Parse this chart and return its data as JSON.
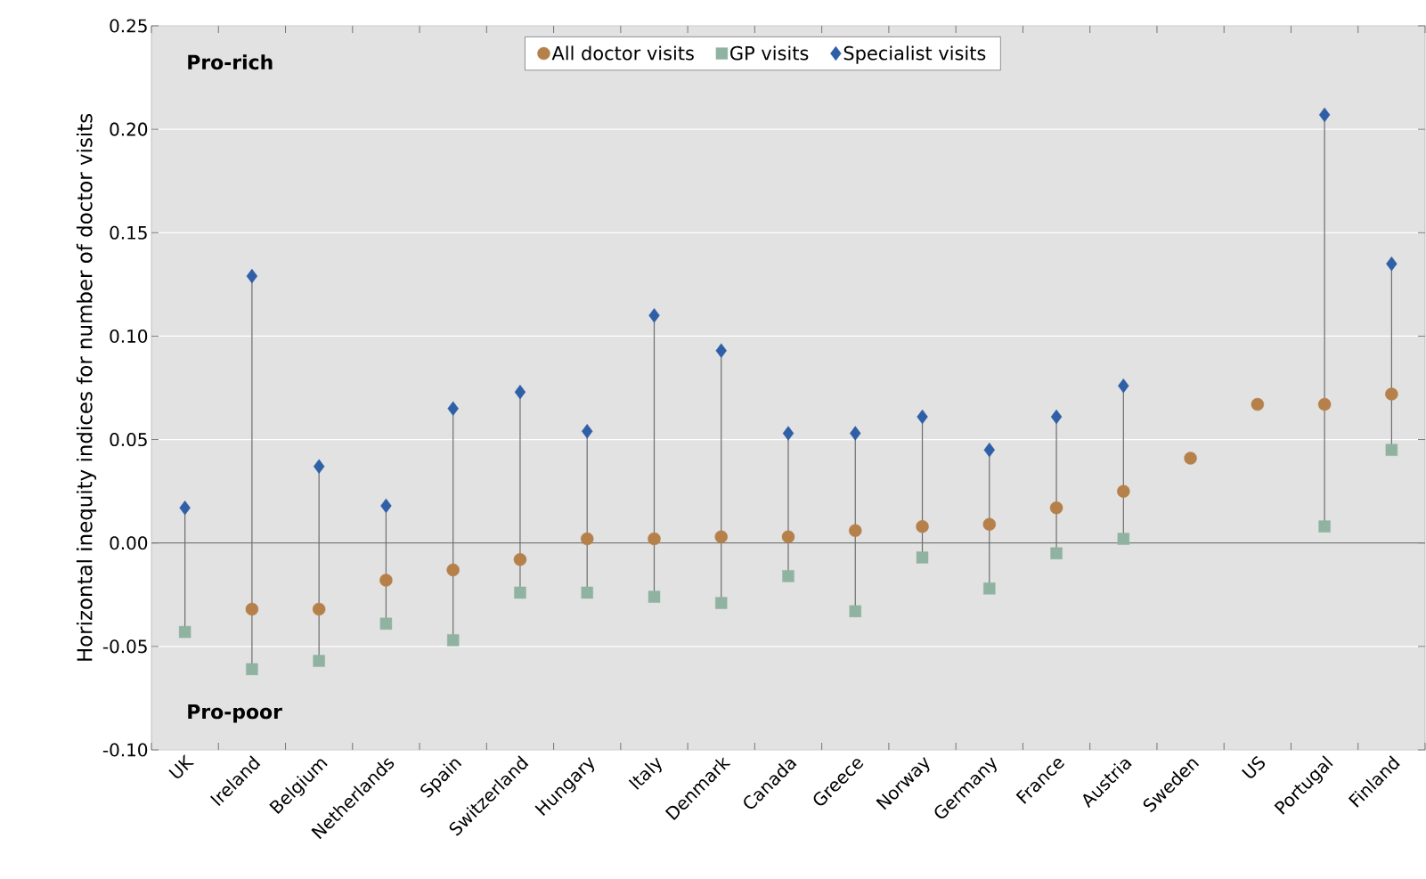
{
  "chart_data": {
    "type": "scatter",
    "ylabel": "Horizontal inequity indices for number of doctor visits",
    "categories": [
      "UK",
      "Ireland",
      "Belgium",
      "Netherlands",
      "Spain",
      "Switzerland",
      "Hungary",
      "Italy",
      "Denmark",
      "Canada",
      "Greece",
      "Norway",
      "Germany",
      "France",
      "Austria",
      "Sweden",
      "US",
      "Portugal",
      "Finland"
    ],
    "series": [
      {
        "name": "All doctor visits",
        "color": "#b5804a",
        "marker": "circle",
        "values": [
          null,
          -0.032,
          -0.032,
          -0.018,
          -0.013,
          -0.008,
          0.002,
          0.002,
          0.003,
          0.003,
          0.006,
          0.008,
          0.009,
          0.017,
          0.025,
          0.041,
          0.067,
          0.067,
          0.072
        ]
      },
      {
        "name": "GP visits",
        "color": "#8fb3a0",
        "marker": "square",
        "values": [
          -0.043,
          -0.061,
          -0.057,
          -0.039,
          -0.047,
          -0.024,
          -0.024,
          -0.026,
          -0.029,
          -0.016,
          -0.033,
          -0.007,
          -0.022,
          -0.005,
          0.002,
          null,
          null,
          0.008,
          0.045
        ]
      },
      {
        "name": "Specialist visits",
        "color": "#2f5fa6",
        "marker": "diamond",
        "values": [
          0.017,
          0.129,
          0.037,
          0.018,
          0.065,
          0.073,
          0.054,
          0.11,
          0.093,
          0.053,
          0.053,
          0.061,
          0.045,
          0.061,
          0.076,
          null,
          null,
          0.207,
          0.135
        ]
      }
    ],
    "ylim": [
      -0.1,
      0.25
    ],
    "yticks": [
      {
        "value": -0.1,
        "label": "-0.10"
      },
      {
        "value": -0.05,
        "label": "-0.05"
      },
      {
        "value": 0,
        "label": "0.00"
      },
      {
        "value": 0.05,
        "label": "0.05"
      },
      {
        "value": 0.1,
        "label": "0.10"
      },
      {
        "value": 0.15,
        "label": "0.15"
      },
      {
        "value": 0.2,
        "label": "0.20"
      },
      {
        "value": 0.25,
        "label": "0.25"
      }
    ],
    "ref_lines": [
      {
        "axis": "y",
        "value": 0,
        "color": "#7a7a7a"
      }
    ],
    "grid": "y",
    "legend": "top",
    "annotations": [
      "Pro-rich",
      "Pro-poor"
    ]
  }
}
